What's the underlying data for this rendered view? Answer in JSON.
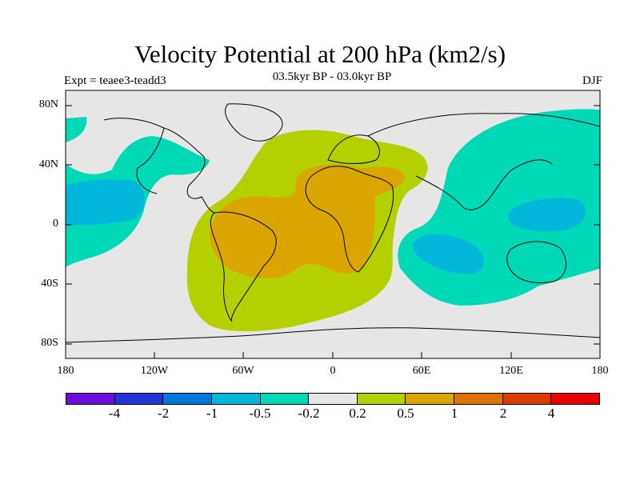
{
  "header": {
    "title": "Velocity Potential at 200 hPa (km2/s)",
    "experiment": "Expt = teaee3-teadd3",
    "period": "03.5kyr BP - 03.0kyr BP",
    "season": "DJF"
  },
  "map": {
    "projection": "cylindrical equidistant",
    "lon_range": [
      -180,
      180
    ],
    "lat_range": [
      -90,
      90
    ],
    "lat_ticks": [
      "80N",
      "40N",
      "0",
      "40S",
      "80S"
    ],
    "lon_ticks": [
      "180",
      "120W",
      "60W",
      "0",
      "60E",
      "120E",
      "180"
    ],
    "features": [
      {
        "name": "positive-anomaly-atlantic-africa",
        "level": "0.2 to 0.5",
        "color": "#b5d000"
      },
      {
        "name": "core-positive-anomaly-south-america-africa",
        "level": "0.5 to 1",
        "color": "#dba500"
      },
      {
        "name": "negative-anomaly-west-pacific",
        "level": "-0.5 to -0.2",
        "color": "#00d9b8"
      },
      {
        "name": "negative-anomaly-east-pacific",
        "level": "-0.5 to -0.2",
        "color": "#00d9b8"
      },
      {
        "name": "strong-negative-anomaly-maritime-continent",
        "level": "-1 to -0.5",
        "color": "#00b6d9"
      },
      {
        "name": "strong-negative-anomaly-east-pacific",
        "level": "-1 to -0.5",
        "color": "#00b6d9"
      }
    ]
  },
  "colorbar": {
    "labels": [
      "-4",
      "-2",
      "-1",
      "-0.5",
      "-0.2",
      "0.2",
      "0.5",
      "1",
      "2",
      "4"
    ],
    "colors": [
      "#6a0ddc",
      "#2033d6",
      "#0077d9",
      "#00b6d9",
      "#00d9b8",
      "#e6e6e6",
      "#b5d000",
      "#dba500",
      "#dc7200",
      "#dc3a00",
      "#e60000"
    ]
  }
}
